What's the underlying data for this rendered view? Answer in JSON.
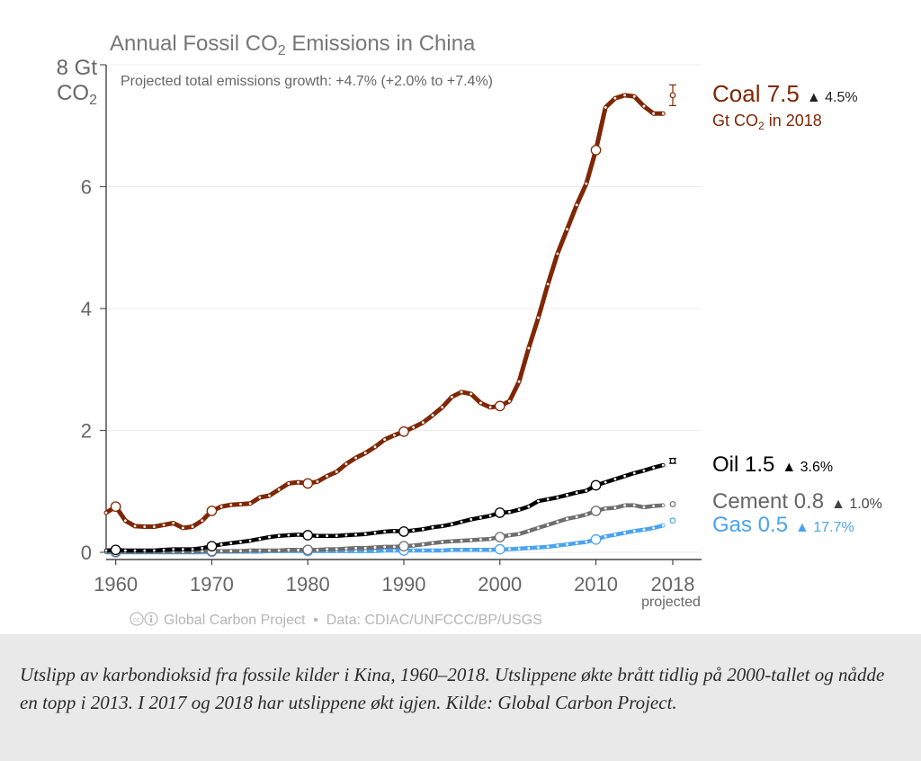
{
  "figure": {
    "title_main": "Annual Fossil CO",
    "title_sub": "2",
    "title_tail": " Emissions in China",
    "note": "Projected total emissions growth: +4.7% (+2.0% to +7.4%)",
    "yunit_line1": "8 Gt",
    "yunit_line2_main": "CO",
    "yunit_line2_sub": "2",
    "projected_label": "projected",
    "source": "Global Carbon Project  •  Data: CDIAC/UNFCCC/BP/USGS"
  },
  "labels": {
    "coal": {
      "name": "Coal 7.5",
      "growth": "▲ 4.5%",
      "unit_main": "Gt CO",
      "unit_sub": "2",
      "unit_tail": " in 2018"
    },
    "oil": {
      "name": "Oil 1.5",
      "growth": "▲ 3.6%"
    },
    "cement": {
      "name": "Cement 0.8",
      "growth": "▲ 1.0%"
    },
    "gas": {
      "name": "Gas 0.5",
      "growth": "▲ 17.7%"
    }
  },
  "caption": "Utslipp av karbondioksid fra fossile kilder i Kina, 1960–2018. Utslippene økte brått tidlig på 2000-tallet og nådde en topp i 2013. I 2017 og 2018 har utslippene økt igjen. Kilde: Global Carbon Project.",
  "chart_data": {
    "type": "line",
    "title": "Annual Fossil CO2 Emissions in China",
    "ylabel": "Gt CO2",
    "xlim": [
      1959,
      2021
    ],
    "ylim": [
      0,
      8
    ],
    "yticks": [
      0,
      2,
      4,
      6,
      8
    ],
    "ytick_labels": [
      "0",
      "2",
      "4",
      "6",
      ""
    ],
    "xticks": [
      1960,
      1970,
      1980,
      1990,
      2000,
      2010,
      2018
    ],
    "grid": true,
    "x": [
      1959,
      1960,
      1961,
      1962,
      1963,
      1964,
      1965,
      1966,
      1967,
      1968,
      1969,
      1970,
      1971,
      1972,
      1973,
      1974,
      1975,
      1976,
      1977,
      1978,
      1979,
      1980,
      1981,
      1982,
      1983,
      1984,
      1985,
      1986,
      1987,
      1988,
      1989,
      1990,
      1991,
      1992,
      1993,
      1994,
      1995,
      1996,
      1997,
      1998,
      1999,
      2000,
      2001,
      2002,
      2003,
      2004,
      2005,
      2006,
      2007,
      2008,
      2009,
      2010,
      2011,
      2012,
      2013,
      2014,
      2015,
      2016,
      2017
    ],
    "series": [
      {
        "name": "Coal",
        "color": "#7f2704",
        "values": [
          0.65,
          0.75,
          0.52,
          0.43,
          0.42,
          0.42,
          0.45,
          0.48,
          0.4,
          0.42,
          0.52,
          0.68,
          0.75,
          0.78,
          0.79,
          0.8,
          0.9,
          0.93,
          1.03,
          1.13,
          1.15,
          1.13,
          1.16,
          1.25,
          1.32,
          1.45,
          1.55,
          1.63,
          1.73,
          1.85,
          1.92,
          1.98,
          2.05,
          2.13,
          2.25,
          2.38,
          2.55,
          2.63,
          2.6,
          2.45,
          2.38,
          2.4,
          2.48,
          2.8,
          3.35,
          3.85,
          4.4,
          4.9,
          5.3,
          5.7,
          6.05,
          6.6,
          7.3,
          7.45,
          7.5,
          7.48,
          7.32,
          7.2,
          7.2
        ],
        "projection": {
          "x": 2018,
          "value": 7.5,
          "low": 7.33,
          "high": 7.67
        }
      },
      {
        "name": "Oil",
        "color": "#000000",
        "values": [
          0.03,
          0.04,
          0.03,
          0.03,
          0.03,
          0.03,
          0.04,
          0.05,
          0.05,
          0.05,
          0.07,
          0.1,
          0.13,
          0.15,
          0.17,
          0.19,
          0.22,
          0.25,
          0.27,
          0.28,
          0.29,
          0.28,
          0.27,
          0.27,
          0.27,
          0.28,
          0.29,
          0.3,
          0.32,
          0.34,
          0.35,
          0.34,
          0.36,
          0.38,
          0.41,
          0.43,
          0.46,
          0.5,
          0.54,
          0.57,
          0.6,
          0.65,
          0.66,
          0.7,
          0.75,
          0.84,
          0.87,
          0.9,
          0.94,
          0.98,
          1.01,
          1.1,
          1.15,
          1.2,
          1.25,
          1.3,
          1.34,
          1.39,
          1.43
        ],
        "projection": {
          "x": 2018,
          "value": 1.5,
          "low": 1.46,
          "high": 1.54
        }
      },
      {
        "name": "Cement",
        "color": "#6e6e6e",
        "values": [
          0.01,
          0.01,
          0.01,
          0.01,
          0.01,
          0.01,
          0.01,
          0.01,
          0.01,
          0.01,
          0.02,
          0.02,
          0.02,
          0.02,
          0.02,
          0.03,
          0.03,
          0.03,
          0.03,
          0.04,
          0.04,
          0.04,
          0.04,
          0.05,
          0.05,
          0.06,
          0.07,
          0.07,
          0.08,
          0.09,
          0.09,
          0.1,
          0.11,
          0.13,
          0.15,
          0.17,
          0.18,
          0.19,
          0.2,
          0.21,
          0.22,
          0.25,
          0.28,
          0.3,
          0.35,
          0.4,
          0.45,
          0.5,
          0.55,
          0.58,
          0.62,
          0.68,
          0.72,
          0.73,
          0.77,
          0.77,
          0.74,
          0.76,
          0.77
        ],
        "projection": {
          "x": 2018,
          "value": 0.79,
          "low": 0.78,
          "high": 0.8
        }
      },
      {
        "name": "Gas",
        "color": "#4aa3f0",
        "values": [
          0.0,
          0.0,
          0.0,
          0.0,
          0.0,
          0.0,
          0.0,
          0.0,
          0.0,
          0.0,
          0.0,
          0.01,
          0.01,
          0.01,
          0.01,
          0.01,
          0.01,
          0.02,
          0.02,
          0.02,
          0.02,
          0.02,
          0.02,
          0.02,
          0.02,
          0.02,
          0.02,
          0.02,
          0.02,
          0.03,
          0.03,
          0.03,
          0.03,
          0.03,
          0.03,
          0.03,
          0.04,
          0.04,
          0.04,
          0.04,
          0.04,
          0.05,
          0.05,
          0.06,
          0.07,
          0.08,
          0.09,
          0.11,
          0.13,
          0.15,
          0.17,
          0.21,
          0.26,
          0.29,
          0.32,
          0.35,
          0.37,
          0.4,
          0.44
        ],
        "projection": {
          "x": 2018,
          "value": 0.52,
          "low": 0.51,
          "high": 0.53
        }
      }
    ]
  }
}
